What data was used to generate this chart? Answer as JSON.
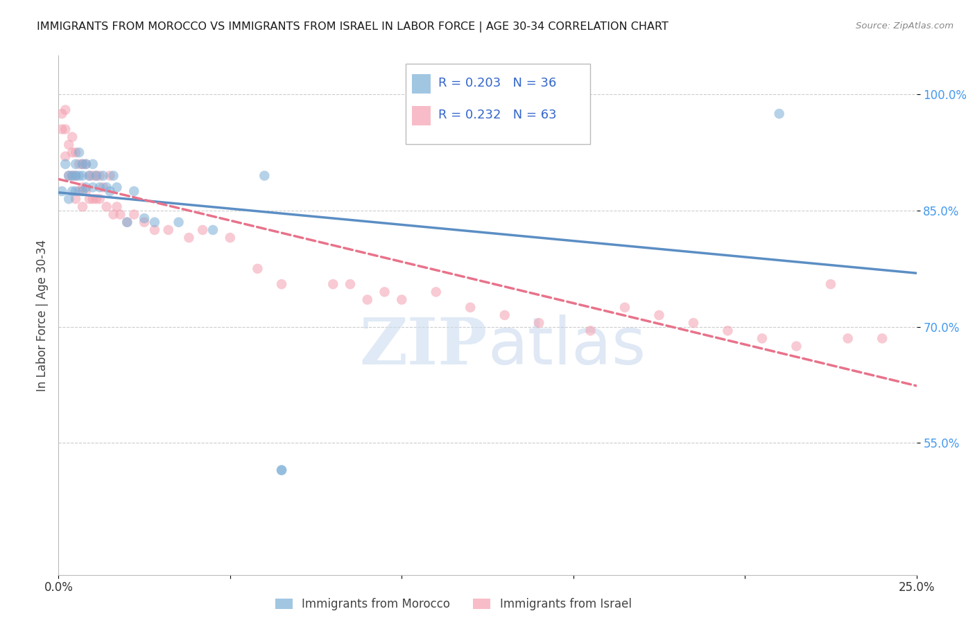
{
  "title": "IMMIGRANTS FROM MOROCCO VS IMMIGRANTS FROM ISRAEL IN LABOR FORCE | AGE 30-34 CORRELATION CHART",
  "source": "Source: ZipAtlas.com",
  "ylabel_label": "In Labor Force | Age 30-34",
  "xlim": [
    0.0,
    0.25
  ],
  "ylim": [
    0.38,
    1.05
  ],
  "y_ticks": [
    0.55,
    0.7,
    0.85,
    1.0
  ],
  "y_tick_labels": [
    "55.0%",
    "70.0%",
    "85.0%",
    "100.0%"
  ],
  "x_ticks": [
    0.0,
    0.05,
    0.1,
    0.15,
    0.2,
    0.25
  ],
  "x_tick_labels": [
    "0.0%",
    "",
    "",
    "",
    "",
    "25.0%"
  ],
  "grid_color": "#cccccc",
  "background_color": "#ffffff",
  "morocco_color": "#7aaed6",
  "israel_color": "#f4a0b0",
  "morocco_line_color": "#5b8ec4",
  "israel_line_color": "#e8728a",
  "morocco_R": 0.203,
  "morocco_N": 36,
  "israel_R": 0.232,
  "israel_N": 63,
  "legend_text_color": "#3366cc",
  "watermark_zip": "ZIP",
  "watermark_atlas": "atlas",
  "marker_size": 110,
  "marker_alpha": 0.55,
  "line_width": 2.5,
  "morocco_x": [
    0.001,
    0.002,
    0.003,
    0.003,
    0.004,
    0.004,
    0.005,
    0.005,
    0.005,
    0.006,
    0.006,
    0.007,
    0.007,
    0.007,
    0.008,
    0.008,
    0.009,
    0.01,
    0.01,
    0.011,
    0.012,
    0.013,
    0.014,
    0.015,
    0.016,
    0.017,
    0.02,
    0.022,
    0.025,
    0.028,
    0.035,
    0.045,
    0.06,
    0.065,
    0.065,
    0.21
  ],
  "morocco_y": [
    0.875,
    0.91,
    0.895,
    0.865,
    0.895,
    0.875,
    0.91,
    0.895,
    0.875,
    0.925,
    0.895,
    0.91,
    0.895,
    0.875,
    0.91,
    0.88,
    0.895,
    0.91,
    0.88,
    0.895,
    0.88,
    0.895,
    0.88,
    0.875,
    0.895,
    0.88,
    0.835,
    0.875,
    0.84,
    0.835,
    0.835,
    0.825,
    0.895,
    0.515,
    0.515,
    0.975
  ],
  "israel_x": [
    0.001,
    0.001,
    0.002,
    0.002,
    0.002,
    0.003,
    0.003,
    0.004,
    0.004,
    0.004,
    0.005,
    0.005,
    0.005,
    0.006,
    0.006,
    0.007,
    0.007,
    0.007,
    0.008,
    0.008,
    0.009,
    0.009,
    0.01,
    0.01,
    0.011,
    0.011,
    0.012,
    0.012,
    0.013,
    0.014,
    0.015,
    0.016,
    0.017,
    0.018,
    0.02,
    0.022,
    0.025,
    0.028,
    0.032,
    0.038,
    0.042,
    0.05,
    0.058,
    0.065,
    0.08,
    0.085,
    0.09,
    0.095,
    0.1,
    0.11,
    0.12,
    0.13,
    0.14,
    0.155,
    0.165,
    0.175,
    0.185,
    0.195,
    0.205,
    0.215,
    0.225,
    0.23,
    0.24
  ],
  "israel_y": [
    0.975,
    0.955,
    0.98,
    0.955,
    0.92,
    0.935,
    0.895,
    0.945,
    0.925,
    0.895,
    0.925,
    0.895,
    0.865,
    0.91,
    0.875,
    0.91,
    0.88,
    0.855,
    0.91,
    0.875,
    0.895,
    0.865,
    0.895,
    0.865,
    0.895,
    0.865,
    0.895,
    0.865,
    0.88,
    0.855,
    0.895,
    0.845,
    0.855,
    0.845,
    0.835,
    0.845,
    0.835,
    0.825,
    0.825,
    0.815,
    0.825,
    0.815,
    0.775,
    0.755,
    0.755,
    0.755,
    0.735,
    0.745,
    0.735,
    0.745,
    0.725,
    0.715,
    0.705,
    0.695,
    0.725,
    0.715,
    0.705,
    0.695,
    0.685,
    0.675,
    0.755,
    0.685,
    0.685
  ]
}
